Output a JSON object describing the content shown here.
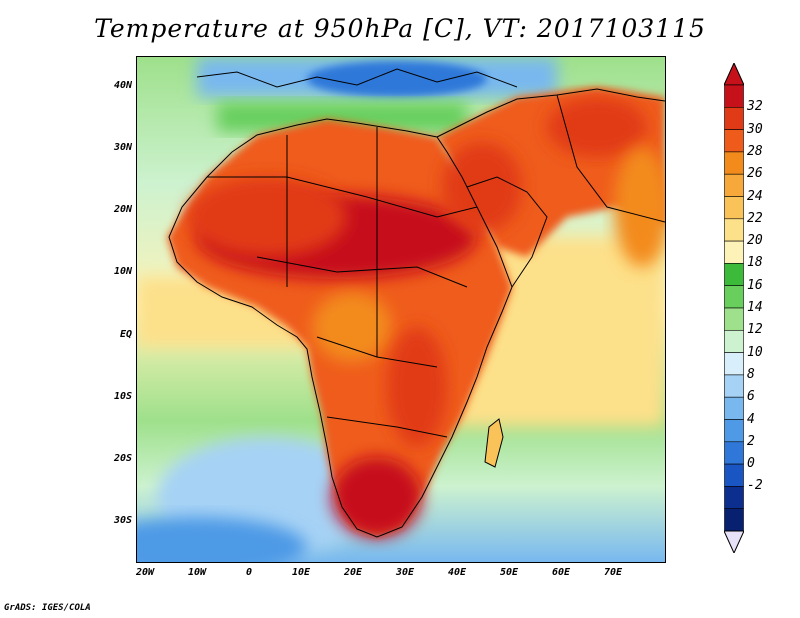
{
  "title": "Temperature at 950hPa [C], VT: 2017103115",
  "credit": "GrADS: IGES/COLA",
  "map": {
    "lat_labels": [
      "40N",
      "30N",
      "20N",
      "10N",
      "EQ",
      "10S",
      "20S",
      "30S"
    ],
    "lon_labels": [
      "20W",
      "10W",
      "0",
      "10E",
      "20E",
      "30E",
      "40E",
      "50E",
      "60E",
      "70E"
    ],
    "lat_range": [
      -37,
      45
    ],
    "lon_range": [
      -23,
      80
    ]
  },
  "colorbar": {
    "labels": [
      "32",
      "30",
      "28",
      "26",
      "24",
      "22",
      "20",
      "18",
      "16",
      "14",
      "12",
      "10",
      "8",
      "6",
      "4",
      "2",
      "0",
      "-2"
    ],
    "colors": [
      "#c6111b",
      "#e13a17",
      "#ef5b1a",
      "#f38b1c",
      "#f6a83a",
      "#fac35a",
      "#fde08a",
      "#fdf3b8",
      "#3cba3a",
      "#68cf5d",
      "#9ee08b",
      "#cdf2cf",
      "#d8eefa",
      "#a6d2f5",
      "#78b8ef",
      "#4e9ae6",
      "#2f78d9",
      "#1a56c3",
      "#0c2e8f",
      "#082070"
    ],
    "top_color": "#c6111b",
    "bottom_color": "#e8e2f8"
  }
}
